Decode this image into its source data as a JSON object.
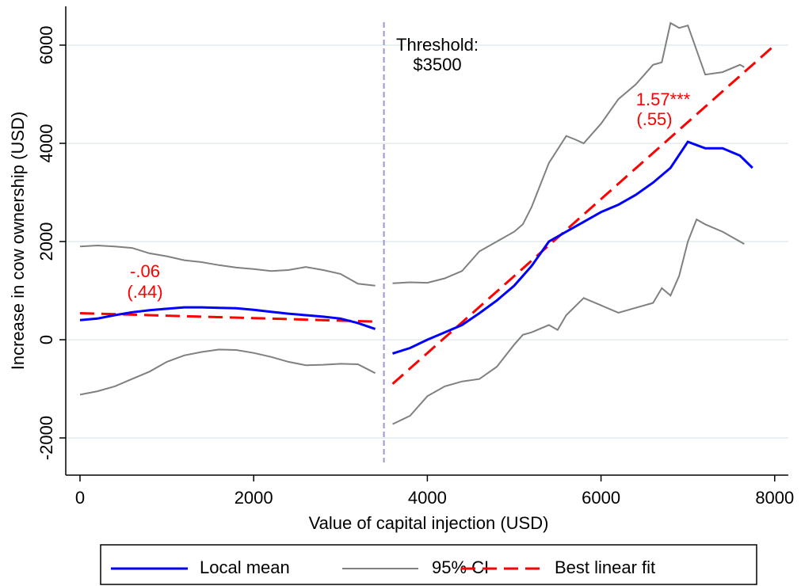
{
  "chart_data": {
    "type": "line",
    "xlabel": "Value of capital injection (USD)",
    "ylabel": "Increase in cow ownership (USD)",
    "xlim": [
      -164,
      8157
    ],
    "xticks": [
      0,
      2000,
      4000,
      6000,
      8000
    ],
    "ylim": [
      -2758,
      6790
    ],
    "yticks": [
      -2000,
      0,
      2000,
      4000,
      6000
    ],
    "grid": true,
    "legend": "bottom",
    "threshold_label": "Threshold:",
    "threshold": {
      "value": 3500,
      "label": "$3500"
    },
    "annotations": [
      "-.06",
      "(.44)",
      "1.57***",
      "(.55)"
    ],
    "series": [
      {
        "name": "Local mean",
        "color": "#0000ff",
        "dash": false,
        "x": [
          0,
          200,
          400,
          600,
          800,
          1000,
          1200,
          1400,
          1600,
          1800,
          2000,
          2200,
          2400,
          2600,
          2800,
          3000,
          3200,
          3400,
          3500,
          3600,
          3800,
          4000,
          4200,
          4400,
          4600,
          4800,
          5000,
          5200,
          5400,
          5600,
          5800,
          6000,
          6200,
          6400,
          6600,
          6800,
          7000,
          7200,
          7400,
          7600,
          7745
        ],
        "values": [
          400,
          430,
          500,
          560,
          600,
          630,
          660,
          660,
          650,
          640,
          610,
          570,
          530,
          500,
          470,
          430,
          340,
          220,
          null,
          -280,
          -170,
          0,
          150,
          300,
          540,
          800,
          1100,
          1500,
          2000,
          2200,
          2400,
          2600,
          2750,
          2950,
          3200,
          3500,
          4030,
          3900,
          3900,
          3750,
          3500
        ]
      },
      {
        "name": "95% CI",
        "color": "#808080",
        "dash": false,
        "x": [
          0,
          200,
          400,
          600,
          800,
          1000,
          1200,
          1400,
          1600,
          1800,
          2000,
          2200,
          2400,
          2600,
          2800,
          3000,
          3200,
          3400,
          3500,
          3600,
          3800,
          4000,
          4200,
          4400,
          4600,
          4800,
          5000,
          5100,
          5200,
          5400,
          5600,
          5700,
          5800,
          6000,
          6200,
          6400,
          6600,
          6700,
          6800,
          6900,
          7000,
          7200,
          7400,
          7600,
          7650
        ],
        "values": [
          1900,
          1920,
          1900,
          1870,
          1760,
          1700,
          1620,
          1580,
          1520,
          1470,
          1440,
          1400,
          1420,
          1480,
          1420,
          1340,
          1140,
          1100,
          null,
          1150,
          1170,
          1160,
          1250,
          1400,
          1800,
          2000,
          2200,
          2350,
          2700,
          3600,
          4150,
          4080,
          4000,
          4400,
          4900,
          5200,
          5600,
          5650,
          6450,
          6350,
          6400,
          5400,
          5450,
          5600,
          5550
        ]
      },
      {
        "name": null,
        "color": "#808080",
        "dash": false,
        "x": [
          0,
          200,
          400,
          600,
          800,
          1000,
          1200,
          1400,
          1600,
          1800,
          2000,
          2200,
          2400,
          2600,
          2800,
          3000,
          3200,
          3400,
          3500,
          3600,
          3800,
          4000,
          4200,
          4400,
          4600,
          4800,
          5000,
          5100,
          5200,
          5400,
          5500,
          5600,
          5800,
          6000,
          6200,
          6400,
          6600,
          6700,
          6800,
          6900,
          7000,
          7100,
          7200,
          7400,
          7650
        ],
        "values": [
          -1120,
          -1050,
          -950,
          -800,
          -650,
          -450,
          -320,
          -250,
          -200,
          -210,
          -270,
          -350,
          -450,
          -520,
          -510,
          -490,
          -500,
          -680,
          null,
          -1720,
          -1550,
          -1150,
          -950,
          -850,
          -800,
          -550,
          -100,
          100,
          150,
          300,
          200,
          500,
          850,
          700,
          550,
          650,
          750,
          1050,
          900,
          1300,
          2000,
          2450,
          2350,
          2200,
          1950
        ]
      },
      {
        "name": "Best linear fit",
        "color": "#ff0000",
        "dash": true,
        "x": [
          0,
          3400,
          3500,
          3600,
          8000
        ],
        "values": [
          540,
          370,
          null,
          -900,
          6000
        ]
      }
    ]
  }
}
